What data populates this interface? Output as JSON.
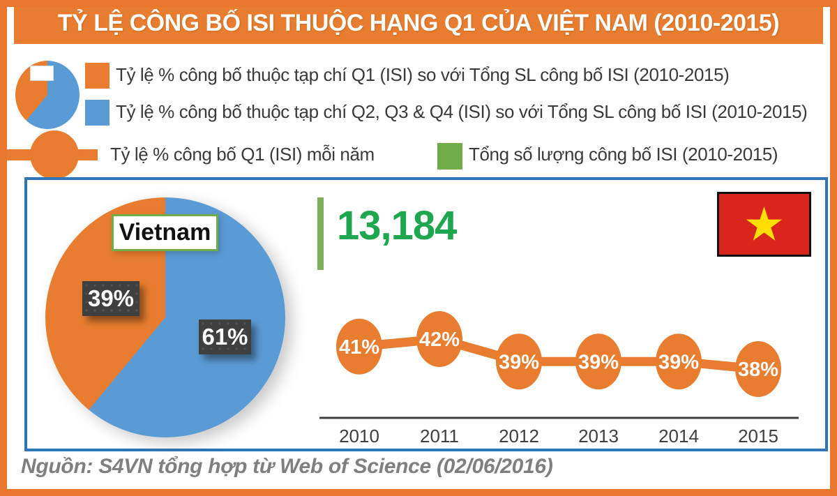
{
  "header": {
    "title": "TỶ LỆ CÔNG BỐ ISI THUỘC HẠNG Q1 CỦA VIỆT NAM (2010-2015)"
  },
  "legend": {
    "q1_label": "Tỷ lệ % công bố thuộc tạp chí Q1 (ISI) so với Tổng SL công bố ISI (2010-2015)",
    "q234_label": "Tỷ lệ % công bố thuộc tạp chí Q2, Q3 & Q4 (ISI) so với Tổng SL công bố ISI (2010-2015)",
    "line_label": "Tỷ lệ % công bố Q1 (ISI) mỗi năm",
    "total_label": "Tổng số lượng công bố ISI (2010-2015)",
    "icons": [
      "pie-legend-icon",
      "orange-swatch",
      "blue-swatch",
      "line-marker-icon",
      "green-swatch"
    ]
  },
  "main": {
    "country_label": "Vietnam",
    "total_publications": "13,184",
    "flag_icon": "vietnam-flag-icon"
  },
  "chart_data": [
    {
      "type": "pie",
      "title": "Vietnam",
      "slices": [
        {
          "label": "Tỷ lệ % công bố thuộc tạp chí Q1 (ISI)",
          "value": 39,
          "display": "39%",
          "color": "#E87D2F"
        },
        {
          "label": "Tỷ lệ % công bố thuộc tạp chí Q2, Q3 & Q4 (ISI)",
          "value": 61,
          "display": "61%",
          "color": "#5B9BD5"
        }
      ],
      "legend_position": "none",
      "start_angle_deg": 0,
      "direction": "clockwise-blue-first"
    },
    {
      "type": "line",
      "title": "Tỷ lệ % công bố Q1 (ISI) mỗi năm",
      "categories": [
        "2010",
        "2011",
        "2012",
        "2013",
        "2014",
        "2015"
      ],
      "values": [
        41,
        42,
        39,
        39,
        39,
        38
      ],
      "labels": [
        "41%",
        "42%",
        "39%",
        "39%",
        "39%",
        "38%"
      ],
      "color": "#E87D2F",
      "marker": "filled-circle-with-label",
      "ylim": [
        0,
        50
      ],
      "grid": false,
      "axis_color": "#3F3F3F"
    }
  ],
  "footer": {
    "source": "Nguồn: S4VN tổng hợp từ Web of Science (02/06/2016)"
  },
  "colors": {
    "orange": "#E87D2F",
    "blue": "#5B9BD5",
    "box_border_blue": "#2E75B6",
    "green_swatch": "#70AD47",
    "green_bar": "#7EAD5C",
    "green_number": "#1FA750",
    "dark_label": "#3F3F3F",
    "footer_gray": "#7F7F7F",
    "flag_red": "#DA251D",
    "flag_star_yellow": "#FFDE00",
    "frame_orange": "#E8772C"
  }
}
